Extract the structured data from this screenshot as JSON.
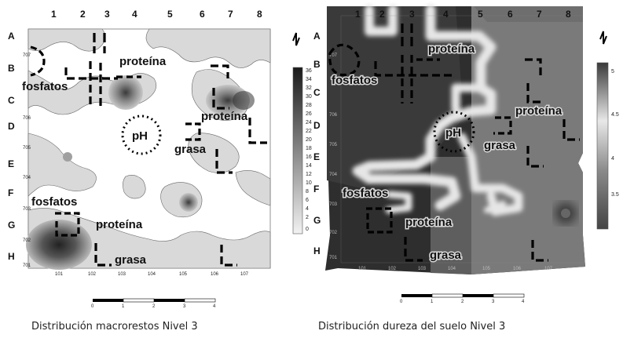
{
  "maps": [
    {
      "caption": "Distribución macrorestos Nivel 3",
      "columns": [
        "1",
        "2",
        "3",
        "4",
        "5",
        "6",
        "7",
        "8"
      ],
      "rows": [
        "A",
        "B",
        "C",
        "D",
        "E",
        "F",
        "G",
        "H"
      ],
      "x_ticks": [
        "101",
        "102",
        "103",
        "104",
        "105",
        "106",
        "107"
      ],
      "y_ticks": [
        "707",
        "706",
        "705",
        "704",
        "703",
        "702",
        "701"
      ],
      "legend_ticks": [
        "36",
        "34",
        "32",
        "30",
        "28",
        "26",
        "24",
        "22",
        "20",
        "18",
        "16",
        "14",
        "12",
        "10",
        "8",
        "6",
        "4",
        "2",
        "0"
      ],
      "zone_labels": [
        "proteína",
        "fosfatos",
        "proteína",
        "pH",
        "grasa",
        "fosfatos",
        "proteína",
        "grasa"
      ],
      "scale_ticks": [
        "0",
        "1",
        "2",
        "3",
        "4"
      ]
    },
    {
      "caption": "Distribución dureza del suelo Nivel 3",
      "columns": [
        "1",
        "2",
        "3",
        "4",
        "5",
        "6",
        "7",
        "8"
      ],
      "rows": [
        "A",
        "B",
        "C",
        "D",
        "E",
        "F",
        "G",
        "H"
      ],
      "x_ticks": [
        "101",
        "102",
        "103",
        "104",
        "105",
        "106",
        "107"
      ],
      "y_ticks": [
        "707",
        "706",
        "705",
        "704",
        "703",
        "702",
        "701"
      ],
      "legend_ticks": [
        "5",
        "4.5",
        "4",
        "3.5"
      ],
      "zone_labels": [
        "proteína",
        "fosfatos",
        "proteína",
        "pH",
        "grasa",
        "fosfatos",
        "proteína",
        "grasa"
      ],
      "scale_ticks": [
        "0",
        "1",
        "2",
        "3",
        "4"
      ]
    }
  ]
}
